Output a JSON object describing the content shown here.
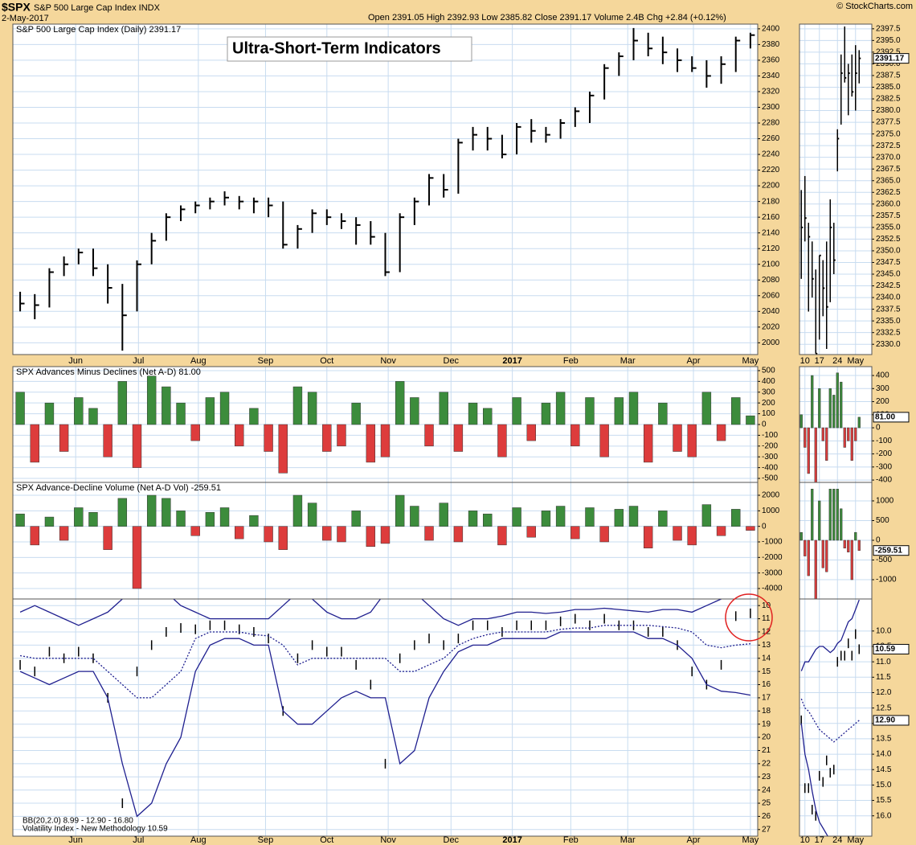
{
  "header": {
    "symbol": "$SPX",
    "name": "S&P 500 Large Cap Index INDX",
    "date": "2-May-2017",
    "quote": "Open 2391.05 High 2392.93 Low 2385.82 Close 2391.17 Volume 2.4B Chg +2.84 (+0.12%)",
    "credit": "© StockCharts.com"
  },
  "chart_data": [
    {
      "type": "ohlc",
      "title": "Ultra-Short-Term Indicators",
      "legend": "S&P 500 Large Cap Index (Daily) 2391.17",
      "color": "#000000",
      "grid": true,
      "xlim": [
        0,
        51
      ],
      "xticks": [
        {
          "value": 4.3,
          "label": "Jun"
        },
        {
          "value": 8.6,
          "label": "Jul"
        },
        {
          "value": 12.7,
          "label": "Aug"
        },
        {
          "value": 17.3,
          "label": "Sep"
        },
        {
          "value": 21.5,
          "label": "Oct"
        },
        {
          "value": 25.7,
          "label": "Nov"
        },
        {
          "value": 30,
          "label": "Dec"
        },
        {
          "value": 34.2,
          "label": "2017"
        },
        {
          "value": 38.2,
          "label": "Feb"
        },
        {
          "value": 42.1,
          "label": "Mar"
        },
        {
          "value": 46.6,
          "label": "Apr"
        },
        {
          "value": 50.5,
          "label": "May"
        }
      ],
      "ylim": [
        1985,
        2406
      ],
      "yticks": [
        2000,
        2020,
        2040,
        2060,
        2080,
        2100,
        2120,
        2140,
        2160,
        2180,
        2200,
        2220,
        2240,
        2260,
        2280,
        2300,
        2320,
        2340,
        2360,
        2380,
        2400
      ],
      "high": [
        2065,
        2062,
        2095,
        2110,
        2120,
        2120,
        2100,
        2075,
        2105,
        2140,
        2165,
        2175,
        2180,
        2185,
        2193,
        2187,
        2185,
        2185,
        2180,
        2150,
        2170,
        2170,
        2165,
        2160,
        2155,
        2140,
        2165,
        2185,
        2215,
        2215,
        2260,
        2275,
        2275,
        2265,
        2280,
        2285,
        2275,
        2285,
        2300,
        2320,
        2355,
        2370,
        2401,
        2395,
        2390,
        2375,
        2365,
        2360,
        2365,
        2390,
        2395
      ],
      "low": [
        2040,
        2030,
        2045,
        2085,
        2100,
        2085,
        2050,
        1990,
        2040,
        2100,
        2130,
        2155,
        2165,
        2170,
        2175,
        2170,
        2165,
        2160,
        2120,
        2120,
        2140,
        2150,
        2145,
        2125,
        2125,
        2085,
        2090,
        2150,
        2175,
        2185,
        2190,
        2245,
        2245,
        2235,
        2240,
        2255,
        2255,
        2260,
        2275,
        2280,
        2310,
        2340,
        2360,
        2365,
        2355,
        2345,
        2345,
        2325,
        2330,
        2345,
        2375
      ],
      "close": [
        2050,
        2048,
        2090,
        2100,
        2115,
        2095,
        2070,
        2035,
        2100,
        2130,
        2160,
        2170,
        2175,
        2180,
        2185,
        2180,
        2180,
        2175,
        2125,
        2145,
        2165,
        2160,
        2155,
        2150,
        2135,
        2090,
        2160,
        2180,
        2210,
        2195,
        2255,
        2265,
        2260,
        2240,
        2275,
        2270,
        2265,
        2280,
        2295,
        2315,
        2350,
        2365,
        2385,
        2375,
        2370,
        2360,
        2350,
        2340,
        2355,
        2385,
        2392
      ]
    },
    {
      "type": "bar",
      "legend": "SPX Advances Minus Declines (Net A-D) 81.00",
      "up_color": "#3c8c3c",
      "down_color": "#dd3c3c",
      "grid": true,
      "ylim": [
        -537,
        537
      ],
      "yticks": [
        500,
        400,
        300,
        200,
        100,
        0,
        -100,
        -200,
        -300,
        -400,
        -500
      ],
      "values": [
        300,
        -350,
        200,
        -250,
        250,
        150,
        -300,
        400,
        -400,
        450,
        350,
        200,
        -150,
        250,
        300,
        -200,
        150,
        -250,
        -450,
        350,
        300,
        -250,
        -200,
        200,
        -350,
        -300,
        400,
        250,
        -200,
        300,
        -250,
        200,
        150,
        -300,
        250,
        -150,
        200,
        300,
        -200,
        250,
        -300,
        250,
        300,
        -350,
        200,
        -250,
        -300,
        300,
        -150,
        250,
        81
      ]
    },
    {
      "type": "bar",
      "legend": "SPX Advance-Decline Volume (Net A-D Vol) -259.51",
      "up_color": "#3c8c3c",
      "down_color": "#dd3c3c",
      "grid": true,
      "ylim": [
        -4673,
        2828
      ],
      "yticks": [
        2000,
        1000,
        0,
        -1000,
        -2000,
        -3000,
        -4000
      ],
      "values": [
        800,
        -1200,
        600,
        -900,
        1200,
        900,
        -1500,
        1800,
        -4000,
        2000,
        1800,
        1000,
        -600,
        900,
        1200,
        -800,
        700,
        -1000,
        -1500,
        2000,
        1500,
        -900,
        -1000,
        1000,
        -1300,
        -1100,
        2000,
        1300,
        -900,
        1500,
        -1000,
        1000,
        800,
        -1200,
        1200,
        -700,
        1000,
        1300,
        -800,
        1200,
        -1000,
        1100,
        1300,
        -1400,
        1000,
        -900,
        -1200,
        1400,
        -600,
        1100,
        -259.51
      ]
    },
    {
      "type": "bands",
      "legend": [
        "BB(20,2.0) 8.99 - 12.90 - 16.80",
        "Volatility Index - New Methodology 10.59"
      ],
      "inverted": true,
      "grid": true,
      "ylim": [
        9.5,
        27.5
      ],
      "yticks": [
        10,
        11,
        12,
        13,
        14,
        15,
        16,
        17,
        18,
        19,
        20,
        21,
        22,
        23,
        24,
        25,
        26,
        27
      ],
      "series": [
        {
          "style": "bars",
          "color": "#000000",
          "values": [
            14.5,
            15,
            13.5,
            14,
            13.5,
            14,
            17,
            25,
            15,
            13,
            12,
            11.7,
            11.8,
            11.5,
            11.5,
            11.8,
            12,
            12.5,
            18,
            14,
            13,
            13.5,
            13.5,
            14.5,
            16,
            22,
            14,
            13,
            12.5,
            13,
            12.5,
            11.5,
            11.5,
            12,
            11.5,
            11.5,
            11.5,
            11.2,
            11,
            11.5,
            11,
            11.5,
            11.5,
            12,
            12,
            13,
            15,
            16,
            14.5,
            10.8,
            10.59
          ]
        },
        {
          "style": "solid",
          "color": "#1f1f8f",
          "values": [
            10.5,
            10,
            10.5,
            11,
            11.5,
            11,
            10.5,
            9.5,
            9,
            9,
            9,
            10,
            10.5,
            11,
            11,
            11,
            11,
            11,
            10,
            9,
            9.5,
            10.5,
            11,
            11,
            10.5,
            9,
            9,
            9,
            10,
            11,
            11.5,
            11,
            11,
            10.8,
            10.5,
            10.5,
            10.6,
            10.5,
            10.3,
            10.3,
            10.2,
            10.3,
            10.4,
            10.5,
            10.3,
            10.3,
            10.5,
            10,
            9.5,
            9.2,
            8.99
          ]
        },
        {
          "style": "dotted",
          "color": "#1f1f8f",
          "values": [
            13.8,
            14,
            14,
            14,
            14,
            14,
            15,
            16,
            17,
            17,
            16,
            15,
            12.5,
            12,
            12,
            12,
            12.2,
            12.3,
            13,
            14.5,
            14,
            14,
            14,
            14,
            14,
            14,
            15,
            15,
            14.5,
            14,
            13,
            12.5,
            12.2,
            12,
            12,
            12,
            12,
            11.8,
            11.7,
            11.7,
            11.5,
            11.5,
            11.5,
            11.5,
            11.6,
            11.7,
            12,
            13,
            13.2,
            13,
            12.9
          ]
        },
        {
          "style": "solid",
          "color": "#1f1f8f",
          "values": [
            15,
            15.5,
            16,
            15.5,
            15,
            15,
            17,
            22,
            26,
            25,
            22,
            20,
            15,
            13,
            12.5,
            12.5,
            13,
            13,
            18,
            19,
            19,
            18,
            17,
            16.5,
            17,
            17,
            22,
            21,
            17,
            15,
            13.5,
            13,
            13,
            12.5,
            12.5,
            12.5,
            12.5,
            12,
            12,
            12,
            12,
            12,
            12,
            12.5,
            12.5,
            13,
            14,
            16,
            16.5,
            16.6,
            16.8
          ]
        }
      ]
    },
    {
      "type": "ohlc",
      "color": "#000000",
      "grid": true,
      "last_label": "2391.17",
      "xlim": [
        0,
        20
      ],
      "xticks": [
        {
          "value": 1.5,
          "label": "10"
        },
        {
          "value": 5.5,
          "label": "17"
        },
        {
          "value": 10.5,
          "label": "24"
        },
        {
          "value": 15.5,
          "label": "May"
        }
      ],
      "ylim": [
        2327.8,
        2398.5
      ],
      "yticks": [
        {
          "value": 2330,
          "label": "2330.0"
        },
        2332.5,
        {
          "value": 2335,
          "label": "2335.0"
        },
        2337.5,
        {
          "value": 2340,
          "label": "2340.0"
        },
        2342.5,
        {
          "value": 2345,
          "label": "2345.0"
        },
        2347.5,
        {
          "value": 2350,
          "label": "2350.0"
        },
        2352.5,
        {
          "value": 2355,
          "label": "2355.0"
        },
        2357.5,
        {
          "value": 2360,
          "label": "2360.0"
        },
        2362.5,
        {
          "value": 2365,
          "label": "2365.0"
        },
        2367.5,
        {
          "value": 2370,
          "label": "2370.0"
        },
        2372.5,
        {
          "value": 2375,
          "label": "2375.0"
        },
        2377.5,
        {
          "value": 2380,
          "label": "2380.0"
        },
        2382.5,
        {
          "value": 2385,
          "label": "2385.0"
        },
        2387.5,
        {
          "value": 2390,
          "label": "2390.0"
        },
        2392.5,
        {
          "value": 2395,
          "label": "2395.0"
        },
        2397.5
      ],
      "high": [
        2363,
        2366,
        2356,
        2352,
        2346,
        2349,
        2348,
        2352,
        2361,
        2356,
        2376,
        2392,
        2398,
        2390,
        2392,
        2394,
        2392.93
      ],
      "low": [
        2344,
        2352,
        2337,
        2340,
        2328,
        2331,
        2336,
        2329,
        2339,
        2345,
        2367,
        2377,
        2386,
        2379,
        2383,
        2380,
        2385.82
      ],
      "close": [
        2355,
        2357,
        2353,
        2344,
        2328,
        2349,
        2342,
        2338,
        2355,
        2348,
        2374,
        2388,
        2387,
        2388,
        2384,
        2388,
        2391.17
      ]
    },
    {
      "type": "bar",
      "up_color": "#3c8c3c",
      "down_color": "#dd3c3c",
      "grid": true,
      "last_label": "81.00",
      "ylim": [
        -418,
        468
      ],
      "yticks": [
        400,
        300,
        200,
        100,
        0,
        -100,
        -200,
        -300,
        -400
      ],
      "values": [
        100,
        -150,
        -350,
        400,
        -450,
        300,
        -100,
        -250,
        300,
        250,
        420,
        350,
        -150,
        -100,
        -250,
        -100,
        81
      ]
    },
    {
      "type": "bar",
      "up_color": "#3c8c3c",
      "down_color": "#dd3c3c",
      "grid": true,
      "last_label": "-259.51",
      "ylim": [
        -1490,
        1469
      ],
      "yticks": [
        1000,
        500,
        0,
        -500,
        -1000
      ],
      "values": [
        200,
        -400,
        -900,
        1300,
        -1500,
        1000,
        -700,
        -800,
        1300,
        1300,
        1300,
        800,
        -200,
        -300,
        -1000,
        200,
        -259.51
      ]
    },
    {
      "type": "bands",
      "inverted": true,
      "grid": true,
      "ylim": [
        8.96,
        16.66
      ],
      "yticks": [
        {
          "value": 10,
          "label": "10.0"
        },
        10.5,
        {
          "value": 11,
          "label": "11.0"
        },
        11.5,
        {
          "value": 12,
          "label": "12.0"
        },
        12.5,
        {
          "value": 13,
          "label": "13.0"
        },
        13.5,
        {
          "value": 14,
          "label": "14.0"
        },
        14.5,
        {
          "value": 15,
          "label": "15.0"
        },
        15.5,
        {
          "value": 16,
          "label": "16.0"
        }
      ],
      "series": [
        {
          "style": "bars",
          "color": "#000000",
          "last_label": "10.59",
          "values": [
            12.9,
            15.1,
            15.1,
            15.8,
            16,
            14.7,
            14.9,
            14.2,
            14.6,
            14.5,
            11,
            10.8,
            10.8,
            10.4,
            10.8,
            10.1,
            10.59
          ]
        },
        {
          "style": "solid",
          "color": "#1f1f8f",
          "values": [
            11.3,
            11,
            11,
            10.8,
            10.6,
            10.5,
            10.5,
            10.6,
            10.7,
            10.6,
            10.4,
            10.3,
            10,
            9.7,
            9.6,
            9.3,
            8.99
          ]
        },
        {
          "style": "dotted",
          "color": "#1f1f8f",
          "last_label": "12.90",
          "values": [
            12.2,
            12.5,
            12.6,
            12.8,
            13,
            13.2,
            13.3,
            13.4,
            13.5,
            13.6,
            13.5,
            13.4,
            13.3,
            13.2,
            13.1,
            13,
            12.9
          ]
        },
        {
          "style": "solid",
          "color": "#1f1f8f",
          "values": [
            13,
            14,
            14.5,
            15.2,
            15.8,
            16.2,
            16.4,
            16.6,
            16.8,
            16.9,
            17,
            17,
            17,
            17,
            16.9,
            16.85,
            16.8
          ]
        }
      ]
    }
  ]
}
